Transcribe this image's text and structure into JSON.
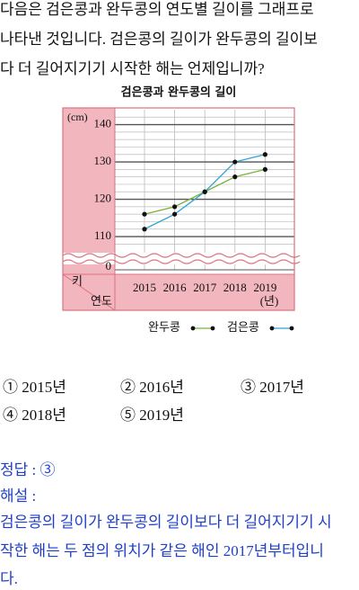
{
  "question": {
    "lines": [
      "다음은 검은콩과 완두콩의 연도별 길이를 그래프로",
      "나타낸 것입니다. 검은콩의 길이가 완두콩의 길이보",
      "다 더 길어지기기 시작한 해는 언제입니까?"
    ]
  },
  "chart_data": {
    "type": "line",
    "title": "검은콩과 완두콩의 길이",
    "y_unit": "(cm)",
    "y_label": "키",
    "x_label": "연도",
    "x_unit": "(년)",
    "categories": [
      "2015",
      "2016",
      "2017",
      "2018",
      "2019"
    ],
    "series": [
      {
        "name": "완두콩",
        "color": "#7ab23a",
        "values": [
          116,
          118,
          122,
          126,
          128
        ]
      },
      {
        "name": "검은콩",
        "color": "#2aa3d6",
        "values": [
          112,
          116,
          122,
          130,
          132
        ]
      }
    ],
    "ylim": [
      107,
      143
    ],
    "yticks": [
      0,
      110,
      120,
      130,
      140
    ],
    "grid_step": 2,
    "axis_break": true
  },
  "options": [
    "① 2015년",
    "② 2016년",
    "③ 2017년",
    "④ 2018년",
    "⑤ 2019년"
  ],
  "answer": {
    "label": "정답 : ③",
    "explanation_title": "해설 :",
    "explanation_lines": [
      "검은콩의 길이가 완두콩의 길이보다 더 길어지기기 시",
      "작한 해는 두 점의 위치가 같은 해인 2017년부터입니",
      "다."
    ]
  }
}
